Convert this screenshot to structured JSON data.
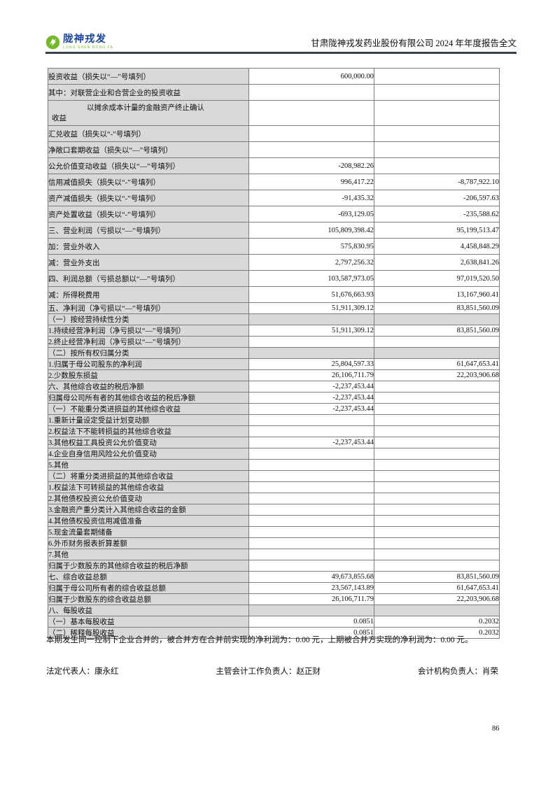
{
  "header": {
    "brand_cn": "陇神戎发",
    "brand_en": "LONG SHEN RONG FA",
    "title": "甘肃陇神戎发药业股份有限公司 2024 年年度报告全文"
  },
  "colors": {
    "logo_green": "#76b82a",
    "logo_blue": "#1d4596",
    "table_shading_gray": "#d9d9d9",
    "table_border": "#7d7d7d",
    "header_rule": "#39414d"
  },
  "table": {
    "columns": [
      "item",
      "current_period_amount",
      "prior_period_amount"
    ],
    "rows": [
      {
        "l": "投资收益（损失以“—”号填列）",
        "v1": "600,000.00",
        "v2": "",
        "ind": 4,
        "sz": "big",
        "gray": false
      },
      {
        "l": "其中：对联营企业和合营企业的投资收益",
        "v1": "",
        "v2": "",
        "ind": 5,
        "sz": "big",
        "gray": false
      },
      {
        "l": "以摊余成本计量的金融资产终止确认\n收益",
        "v1": "",
        "v2": "",
        "ind": 5,
        "sz": "wrap",
        "gray": false
      },
      {
        "l": "汇兑收益（损失以“-”号填列）",
        "v1": "",
        "v2": "",
        "ind": 4,
        "sz": "big",
        "gray": false
      },
      {
        "l": "净敞口套期收益（损失以“—”号填列）",
        "v1": "",
        "v2": "",
        "ind": 4,
        "sz": "big",
        "gray": false
      },
      {
        "l": "公允价值变动收益（损失以“—”号填列）",
        "v1": "-208,982.26",
        "v2": "",
        "ind": 4,
        "sz": "big",
        "gray": false
      },
      {
        "l": "信用减值损失（损失以“-”号填列）",
        "v1": "996,417.22",
        "v2": "-8,787,922.10",
        "ind": 4,
        "sz": "big",
        "gray": false
      },
      {
        "l": "资产减值损失（损失以“-”号填列）",
        "v1": "-91,435.32",
        "v2": "-206,597.63",
        "ind": 4,
        "sz": "big",
        "gray": false
      },
      {
        "l": "资产处置收益（损失以“-”号填列）",
        "v1": "-693,129.05",
        "v2": "-235,588.62",
        "ind": 4,
        "sz": "big",
        "gray": false
      },
      {
        "l": "三、营业利润（亏损以“—”号填列）",
        "v1": "105,809,398.42",
        "v2": "95,199,513.47",
        "ind": 0,
        "sz": "big",
        "gray": false
      },
      {
        "l": "加：营业外收入",
        "v1": "575,830.95",
        "v2": "4,458,848.29",
        "ind": 2,
        "sz": "big",
        "gray": false
      },
      {
        "l": "减：营业外支出",
        "v1": "2,797,256.32",
        "v2": "2,638,841.26",
        "ind": 2,
        "sz": "big",
        "gray": false
      },
      {
        "l": "四、利润总额（亏损总额以“—”号填列）",
        "v1": "103,587,973.05",
        "v2": "97,019,520.50",
        "ind": 0,
        "sz": "big",
        "gray": false
      },
      {
        "l": "减：所得税费用",
        "v1": "51,676,663.93",
        "v2": "13,167,960.41",
        "ind": 2,
        "sz": "big",
        "gray": false
      },
      {
        "l": "五、净利润（净亏损以“—”号填列）",
        "v1": "51,911,309.12",
        "v2": "83,851,560.09",
        "ind": 0,
        "sz": "small",
        "gray": false
      },
      {
        "l": "（一）按经营持续性分类",
        "v1": "",
        "v2": "",
        "ind": 2,
        "sz": "small",
        "gray": true
      },
      {
        "l": "1.持续经营净利润（净亏损以“—”号填列）",
        "v1": "51,911,309.12",
        "v2": "83,851,560.09",
        "ind": 3,
        "sz": "small",
        "gray": false
      },
      {
        "l": "2.终止经营净利润（净亏损以“—”号填列）",
        "v1": "",
        "v2": "",
        "ind": 3,
        "sz": "small",
        "gray": false
      },
      {
        "l": "（二）按所有权归属分类",
        "v1": "",
        "v2": "",
        "ind": 2,
        "sz": "small",
        "gray": true
      },
      {
        "l": "1.归属于母公司股东的净利润",
        "v1": "25,804,597.33",
        "v2": "61,647,653.41",
        "ind": 3,
        "sz": "small",
        "gray": false
      },
      {
        "l": "2.少数股东损益",
        "v1": "26,106,711.79",
        "v2": "22,203,906.68",
        "ind": 3,
        "sz": "small",
        "gray": false
      },
      {
        "l": "六、其他综合收益的税后净额",
        "v1": "-2,237,453.44",
        "v2": "",
        "ind": 0,
        "sz": "small",
        "gray": false
      },
      {
        "l": "归属母公司所有者的其他综合收益的税后净额",
        "v1": "-2,237,453.44",
        "v2": "",
        "ind": 1,
        "sz": "small",
        "gray": false
      },
      {
        "l": "（一）不能重分类进损益的其他综合收益",
        "v1": "-2,237,453.44",
        "v2": "",
        "ind": 2,
        "sz": "small",
        "gray": false
      },
      {
        "l": "1.重新计量设定受益计划变动额",
        "v1": "",
        "v2": "",
        "ind": 3,
        "sz": "small",
        "gray": false
      },
      {
        "l": "2.权益法下不能转损益的其他综合收益",
        "v1": "",
        "v2": "",
        "ind": 3,
        "sz": "small",
        "gray": false
      },
      {
        "l": "3.其他权益工具投资公允价值变动",
        "v1": "-2,237,453.44",
        "v2": "",
        "ind": 3,
        "sz": "small",
        "gray": false
      },
      {
        "l": "4.企业自身信用风险公允价值变动",
        "v1": "",
        "v2": "",
        "ind": 3,
        "sz": "small",
        "gray": false
      },
      {
        "l": "5.其他",
        "v1": "",
        "v2": "",
        "ind": 3,
        "sz": "small",
        "gray": false
      },
      {
        "l": "（二）将重分类进损益的其他综合收益",
        "v1": "",
        "v2": "",
        "ind": 2,
        "sz": "small",
        "gray": false
      },
      {
        "l": "1.权益法下可转损益的其他综合收益",
        "v1": "",
        "v2": "",
        "ind": 3,
        "sz": "small",
        "gray": false
      },
      {
        "l": "2.其他债权投资公允价值变动",
        "v1": "",
        "v2": "",
        "ind": 3,
        "sz": "small",
        "gray": false
      },
      {
        "l": "3.金融资产重分类计入其他综合收益的金额",
        "v1": "",
        "v2": "",
        "ind": 3,
        "sz": "small",
        "gray": false
      },
      {
        "l": "4.其他债权投资信用减值准备",
        "v1": "",
        "v2": "",
        "ind": 3,
        "sz": "small",
        "gray": false
      },
      {
        "l": "5.现金流量套期储备",
        "v1": "",
        "v2": "",
        "ind": 3,
        "sz": "small",
        "gray": false
      },
      {
        "l": "6.外币财务报表折算差额",
        "v1": "",
        "v2": "",
        "ind": 3,
        "sz": "small",
        "gray": false
      },
      {
        "l": "7.其他",
        "v1": "",
        "v2": "",
        "ind": 3,
        "sz": "small",
        "gray": false
      },
      {
        "l": "归属于少数股东的其他综合收益的税后净额",
        "v1": "",
        "v2": "",
        "ind": 1,
        "sz": "small",
        "gray": false
      },
      {
        "l": "七、综合收益总额",
        "v1": "49,673,855.68",
        "v2": "83,851,560.09",
        "ind": 0,
        "sz": "small",
        "gray": false
      },
      {
        "l": "归属于母公司所有者的综合收益总额",
        "v1": "23,567,143.89",
        "v2": "61,647,653.41",
        "ind": 1,
        "sz": "small",
        "gray": false
      },
      {
        "l": "归属于少数股东的综合收益总额",
        "v1": "26,106,711.79",
        "v2": "22,203,906.68",
        "ind": 1,
        "sz": "small",
        "gray": false
      },
      {
        "l": "八、每股收益",
        "v1": "",
        "v2": "",
        "ind": 0,
        "sz": "small",
        "gray": true
      },
      {
        "l": "（一）基本每股收益",
        "v1": "0.0851",
        "v2": "0.2032",
        "ind": 2,
        "sz": "small",
        "gray": false
      },
      {
        "l": "（二）稀释每股收益",
        "v1": "0.0851",
        "v2": "0.2032",
        "ind": 2,
        "sz": "small",
        "gray": false
      }
    ]
  },
  "note": "本期发生同一控制下企业合并的，被合并方在合并前实现的净利润为：0.00 元，上期被合并方实现的净利润为：0.00 元。",
  "signatures": {
    "legal_representative": "法定代表人：康永红",
    "chief_accountant": "主管会计工作负责人：赵正财",
    "accounting_dept_head": "会计机构负责人：肖荣"
  },
  "page_number": "86"
}
